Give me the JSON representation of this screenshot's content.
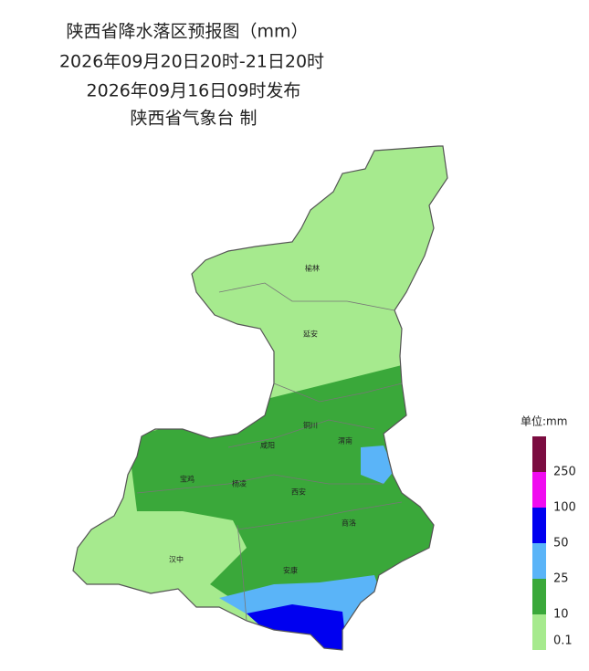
{
  "title": {
    "line1": "陕西省降水落区预报图（mm）",
    "line2": "2026年09月20日20时-21日20时",
    "line3": "2026年09月16日09时发布",
    "line4": "陕西省气象台 制"
  },
  "map": {
    "cities": [
      "榆林",
      "延安",
      "铜川",
      "咸阳",
      "渭南",
      "宝鸡",
      "杨凌",
      "西安",
      "商洛",
      "汉中",
      "安康"
    ]
  },
  "legend": {
    "title": "单位:mm",
    "items": [
      {
        "label": "250",
        "color": "#7b0c40"
      },
      {
        "label": "100",
        "color": "#f00cf0"
      },
      {
        "label": "50",
        "color": "#0000f0"
      },
      {
        "label": "25",
        "color": "#5ab4f8"
      },
      {
        "label": "10",
        "color": "#3aa83a"
      },
      {
        "label": "0.1",
        "color": "#a6ea8e"
      }
    ]
  }
}
